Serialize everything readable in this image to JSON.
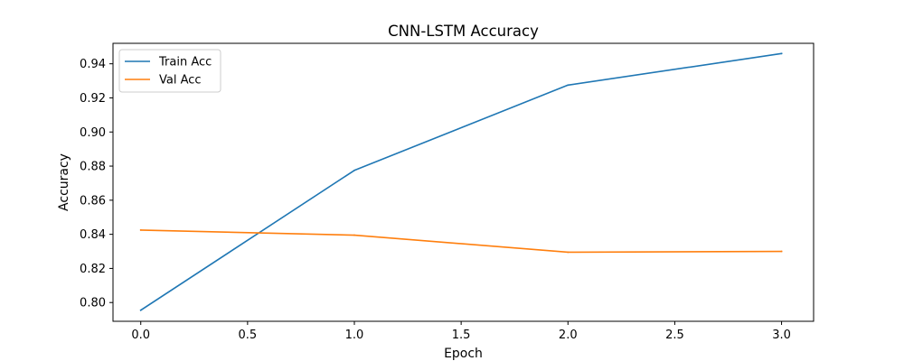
{
  "chart_data": {
    "type": "line",
    "title": "CNN-LSTM Accuracy",
    "xlabel": "Epoch",
    "ylabel": "Accuracy",
    "x": [
      0,
      1,
      2,
      3
    ],
    "xlim": [
      -0.13,
      3.15
    ],
    "ylim": [
      0.789,
      0.952
    ],
    "xticks": [
      0.0,
      0.5,
      1.0,
      1.5,
      2.0,
      2.5,
      3.0
    ],
    "xtick_labels": [
      "0.0",
      "0.5",
      "1.0",
      "1.5",
      "2.0",
      "2.5",
      "3.0"
    ],
    "yticks": [
      0.8,
      0.82,
      0.84,
      0.86,
      0.88,
      0.9,
      0.92,
      0.94
    ],
    "ytick_labels": [
      "0.80",
      "0.82",
      "0.84",
      "0.86",
      "0.88",
      "0.90",
      "0.92",
      "0.94"
    ],
    "grid": false,
    "legend_position": "top-left",
    "series": [
      {
        "name": "Train Acc",
        "color": "#1f77b4",
        "values": [
          0.7955,
          0.8775,
          0.9275,
          0.946
        ]
      },
      {
        "name": "Val Acc",
        "color": "#ff7f0e",
        "values": [
          0.8425,
          0.8395,
          0.8295,
          0.83
        ]
      }
    ]
  }
}
